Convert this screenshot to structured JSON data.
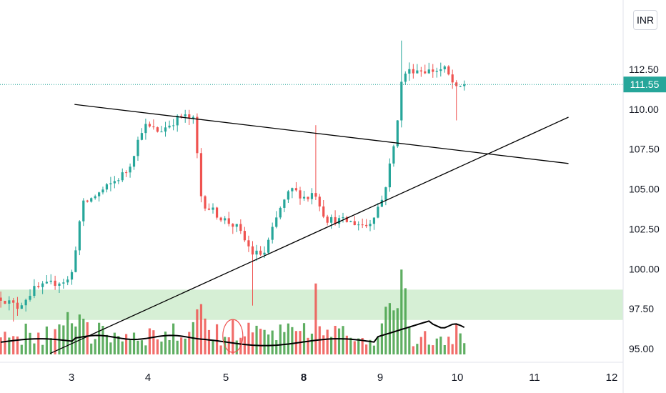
{
  "header": {
    "currency": "INR"
  },
  "last_price": {
    "value": 111.55,
    "label": "111.55",
    "color": "#26a69a"
  },
  "colors": {
    "up": "#26a69a",
    "down": "#ef5350",
    "vol_up": "#43a047",
    "vol_down": "#ef5350",
    "zone": "#d6efd5",
    "line": "#000000",
    "axis_text": "#131722"
  },
  "chart_data": {
    "type": "candlestick",
    "y_axis": {
      "ticks": [
        "95.00",
        "97.50",
        "100.00",
        "102.50",
        "105.00",
        "107.50",
        "110.00",
        "112.50"
      ],
      "range": [
        94.7,
        115.5
      ]
    },
    "x_axis": {
      "ticks": [
        "3",
        "4",
        "5",
        "8",
        "9",
        "10",
        "11",
        "12"
      ],
      "bold_tick": "8"
    },
    "support_zone": {
      "from": 96.8,
      "to": 98.7
    },
    "trend_lines": [
      {
        "name": "",
        "from": [
          0.9,
          110.3
        ],
        "to": [
          7.3,
          106.6
        ]
      },
      {
        "name": "",
        "from": [
          0.6,
          94.7
        ],
        "to": [
          7.3,
          109.5
        ]
      }
    ],
    "highlight": {
      "x": 2.95,
      "price": 95.8
    },
    "volume_ma": true,
    "candles": [],
    "volume": [],
    "volume_ma_values": []
  }
}
